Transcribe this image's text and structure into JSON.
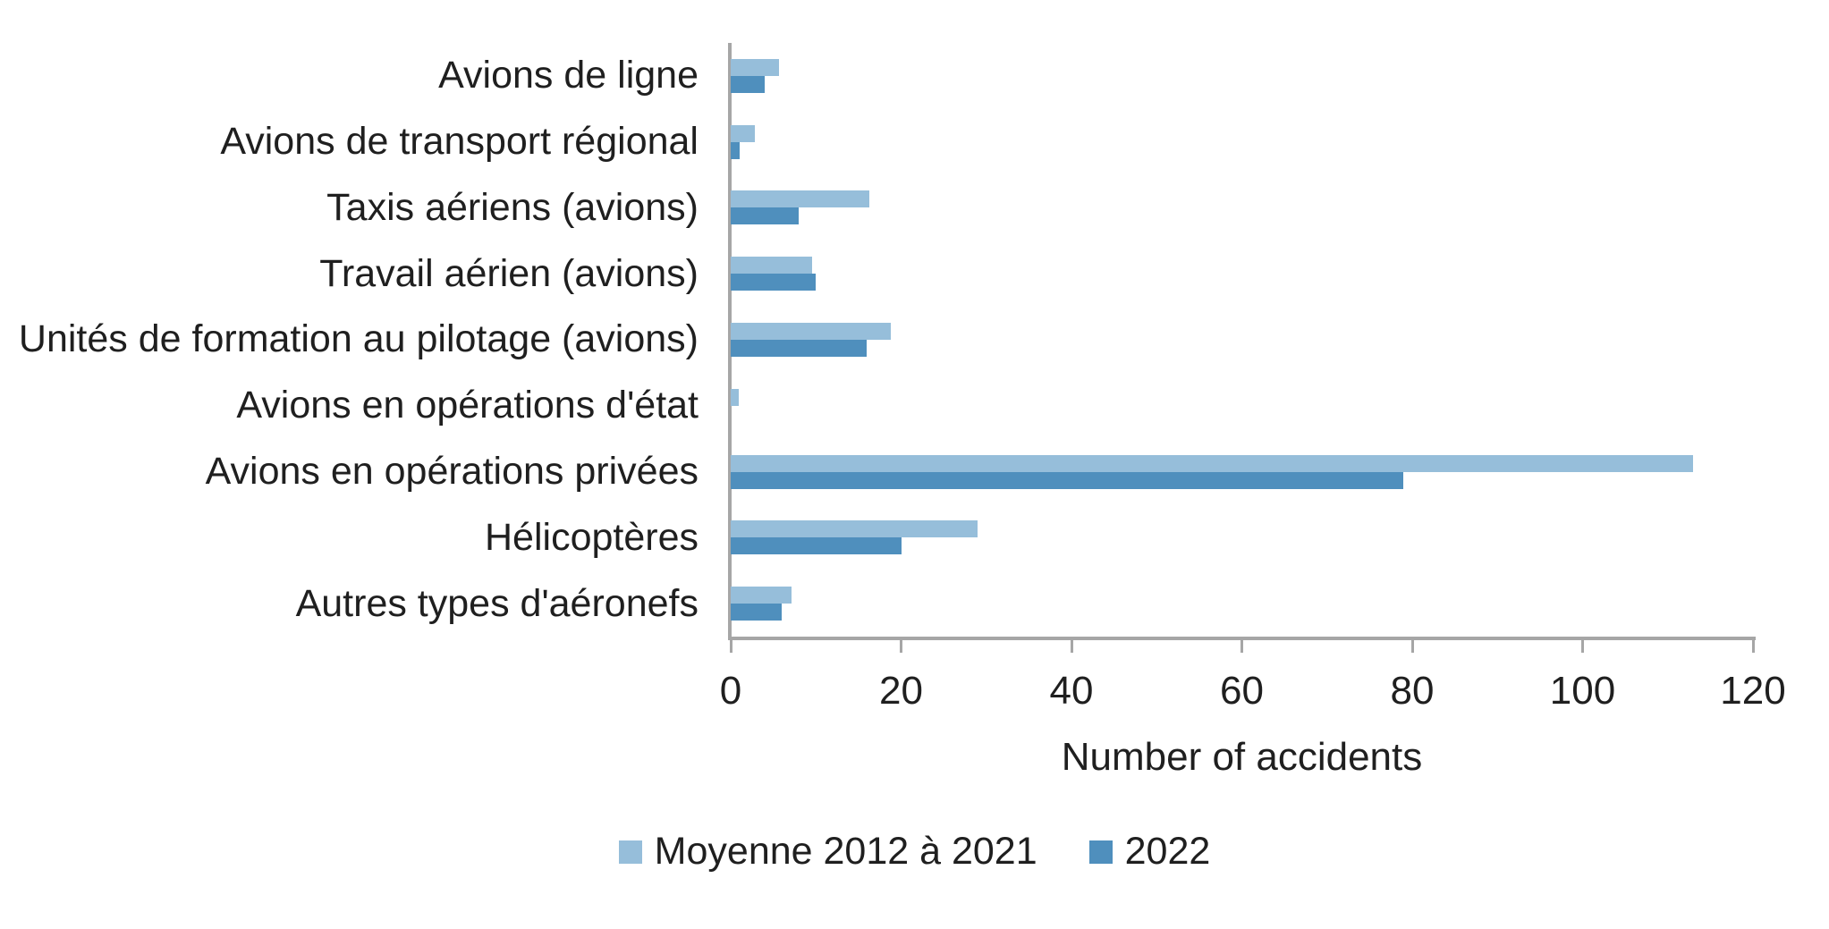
{
  "chart_data": {
    "type": "bar",
    "orientation": "horizontal",
    "title": "",
    "xlabel": "Number of accidents",
    "ylabel": "",
    "xlim": [
      0,
      120
    ],
    "xticks": [
      0,
      20,
      40,
      60,
      80,
      100,
      120
    ],
    "grid": false,
    "legend_position": "bottom",
    "categories": [
      "Avions de ligne",
      "Avions de transport régional",
      "Taxis aériens (avions)",
      "Travail aérien (avions)",
      "Unités de formation au pilotage (avions)",
      "Avions en opérations d'état",
      "Avions en opérations privées",
      "Hélicoptères",
      "Autres types d'aéronefs"
    ],
    "series": [
      {
        "name": "Moyenne 2012 à 2021",
        "color": "#96BEDA",
        "values": [
          5.7,
          2.8,
          16.3,
          9.6,
          18.8,
          0.9,
          113,
          29,
          7.1
        ]
      },
      {
        "name": "2022",
        "color": "#4F8FBD",
        "values": [
          4,
          1,
          8,
          10,
          16,
          0,
          79,
          20,
          6
        ]
      }
    ]
  },
  "colors": {
    "axis_line": "#A6A6A6",
    "text": "#1F1F1F",
    "background": "#FFFFFF"
  }
}
